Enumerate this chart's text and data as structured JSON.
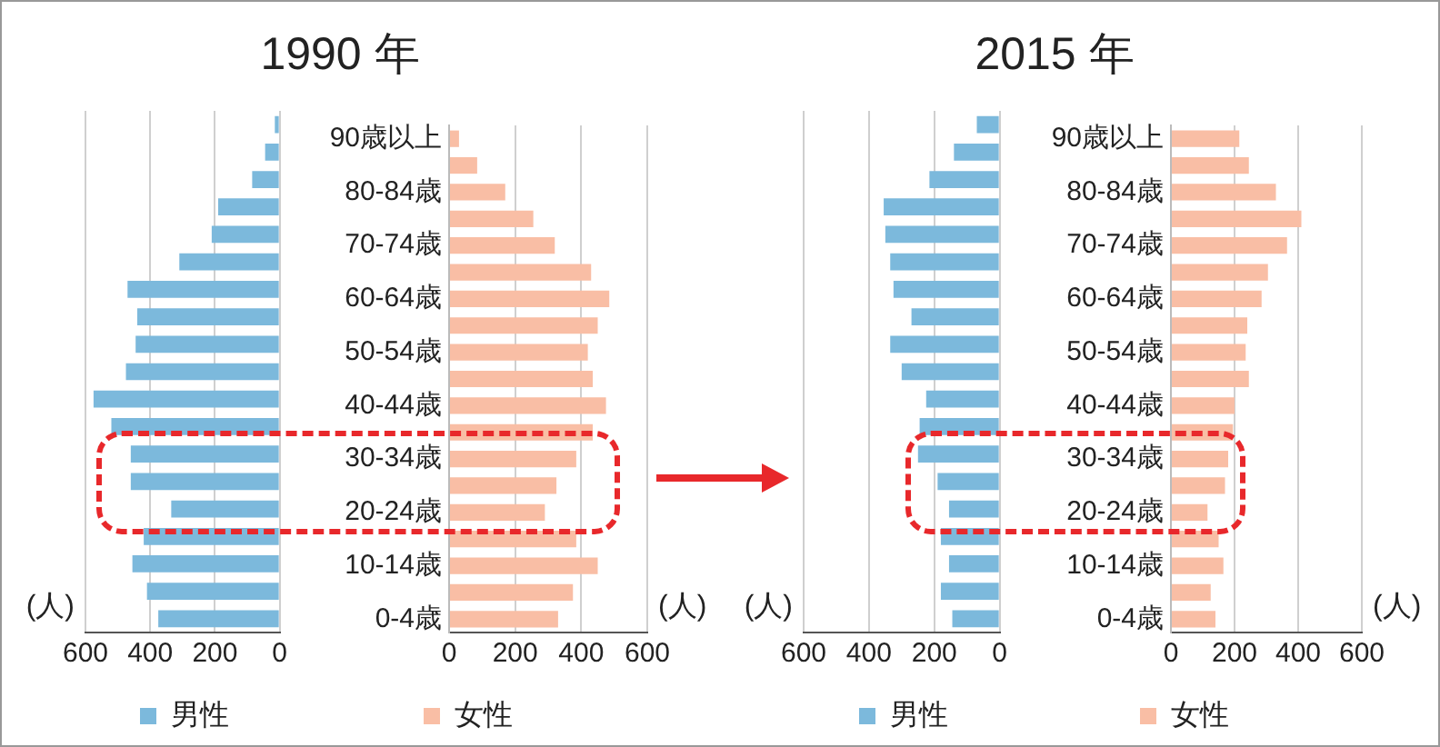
{
  "chart_data": [
    {
      "type": "bar",
      "orientation": "horizontal",
      "title": "1990 年",
      "xlabel": "(人)",
      "categories": [
        null,
        null,
        null,
        null,
        null,
        null,
        null,
        null,
        null,
        null,
        null,
        null,
        null,
        null,
        null,
        null,
        null,
        null,
        null
      ],
      "series": [
        {
          "name": "男性",
          "color": "#7cb9dc",
          "values": [
            15,
            45,
            85,
            190,
            210,
            310,
            470,
            440,
            445,
            475,
            575,
            520,
            460,
            460,
            335,
            420,
            455,
            410,
            375
          ]
        }
      ],
      "xlim": [
        600,
        0
      ],
      "xticks": [
        600,
        400,
        200,
        0
      ],
      "grid": "x",
      "legend": "bottom",
      "tick_labels": "x"
    },
    {
      "type": "bar",
      "orientation": "horizontal",
      "xlabel": "(人)",
      "categories": [
        "90歳以上",
        null,
        "80-84歳",
        null,
        "70-74歳",
        null,
        "60-64歳",
        null,
        "50-54歳",
        null,
        "40-44歳",
        null,
        "30-34歳",
        null,
        "20-24歳",
        null,
        "10-14歳",
        null,
        "0-4歳"
      ],
      "series": [
        {
          "name": "女性",
          "color": "#f9bea5",
          "values": [
            30,
            85,
            170,
            255,
            320,
            430,
            485,
            450,
            420,
            435,
            475,
            435,
            385,
            325,
            290,
            385,
            450,
            375,
            330
          ]
        }
      ],
      "xlim": [
        0,
        600
      ],
      "xticks": [
        0,
        200,
        400,
        600
      ],
      "grid": "x",
      "legend": "bottom"
    },
    {
      "type": "bar",
      "orientation": "horizontal",
      "title": "2015 年",
      "xlabel": "(人)",
      "categories": [
        null,
        null,
        null,
        null,
        null,
        null,
        null,
        null,
        null,
        null,
        null,
        null,
        null,
        null,
        null,
        null,
        null,
        null,
        null
      ],
      "series": [
        {
          "name": "男性",
          "color": "#7cb9dc",
          "values": [
            70,
            140,
            215,
            355,
            350,
            335,
            325,
            270,
            335,
            300,
            225,
            245,
            250,
            190,
            155,
            180,
            155,
            180,
            145
          ]
        }
      ],
      "xlim": [
        600,
        0
      ],
      "xticks": [
        600,
        400,
        200,
        0
      ],
      "grid": "x",
      "legend": "bottom",
      "tick_labels": "x"
    },
    {
      "type": "bar",
      "orientation": "horizontal",
      "xlabel": "(人)",
      "categories": [
        "90歳以上",
        null,
        "80-84歳",
        null,
        "70-74歳",
        null,
        "60-64歳",
        null,
        "50-54歳",
        null,
        "40-44歳",
        null,
        "30-34歳",
        null,
        "20-24歳",
        null,
        "10-14歳",
        null,
        "0-4歳"
      ],
      "series": [
        {
          "name": "女性",
          "color": "#f9bea5",
          "values": [
            215,
            245,
            330,
            410,
            365,
            305,
            285,
            240,
            235,
            245,
            200,
            195,
            180,
            170,
            115,
            150,
            165,
            125,
            140
          ]
        }
      ],
      "xlim": [
        0,
        600
      ],
      "xticks": [
        0,
        200,
        400,
        600
      ],
      "grid": "x",
      "legend": "bottom"
    }
  ]
}
